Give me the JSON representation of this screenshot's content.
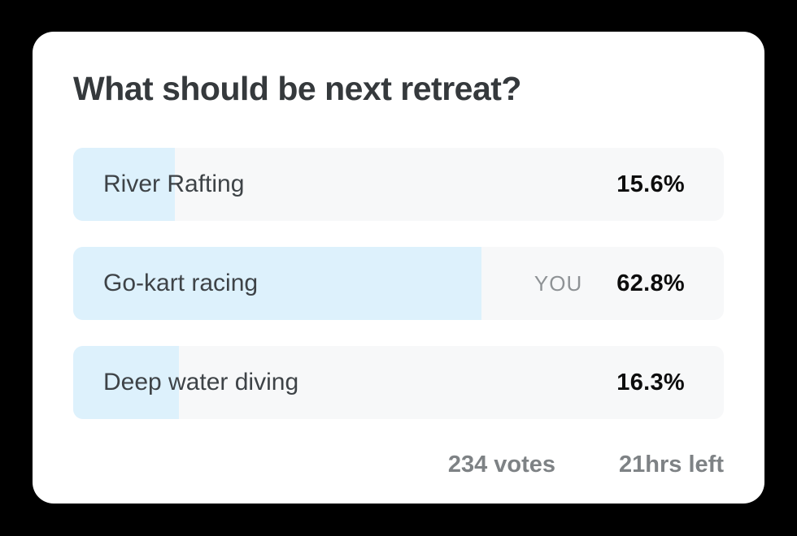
{
  "page": {
    "background_color": "#000000"
  },
  "card": {
    "title": "What should be next retreat?",
    "colors": {
      "card_background": "#ffffff",
      "bar_fill": "#ddf1fc",
      "bar_track": "#f7f8f9",
      "title_text": "#35393c",
      "label_text": "#3e4347",
      "pct_text": "#0d0d0d",
      "muted_text": "#7e8285"
    },
    "poll": {
      "you_badge": "YOU",
      "options": [
        {
          "label": "River Rafting",
          "pct_label": "15.6%",
          "pct_value": 15.6,
          "is_user_vote": false
        },
        {
          "label": "Go-kart racing",
          "pct_label": "62.8%",
          "pct_value": 62.8,
          "is_user_vote": true
        },
        {
          "label": "Deep water diving",
          "pct_label": "16.3%",
          "pct_value": 16.3,
          "is_user_vote": false
        }
      ],
      "votes_text": "234 votes",
      "time_left_text": "21hrs left"
    }
  }
}
